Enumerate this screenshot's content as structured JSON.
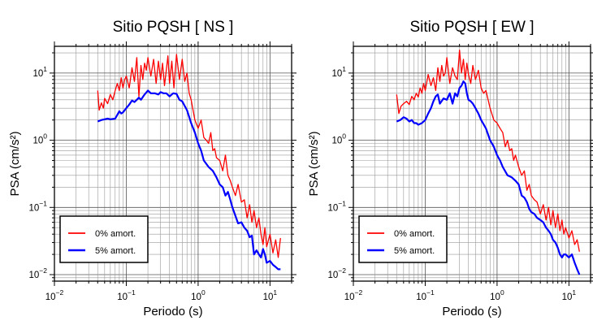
{
  "chart_data": [
    {
      "type": "line",
      "title": "Sitio PQSH [ NS ]",
      "xlabel": "Periodo (s)",
      "ylabel": "PSA (cm/s²)",
      "x_scale": "log",
      "y_scale": "log",
      "xlim": [
        0.01,
        20
      ],
      "ylim": [
        0.008,
        25
      ],
      "grid": true,
      "legend_position": "bottom-left",
      "x_ticks": [
        {
          "value": 0.01,
          "base": "10",
          "exp": "−2"
        },
        {
          "value": 0.1,
          "base": "10",
          "exp": "−1"
        },
        {
          "value": 1,
          "base": "10",
          "exp": "0"
        },
        {
          "value": 10,
          "base": "10",
          "exp": "1"
        }
      ],
      "y_ticks": [
        {
          "value": 0.01,
          "base": "10",
          "exp": "−2"
        },
        {
          "value": 0.1,
          "base": "10",
          "exp": "−1"
        },
        {
          "value": 1,
          "base": "10",
          "exp": "0"
        },
        {
          "value": 10,
          "base": "10",
          "exp": "1"
        }
      ],
      "series": [
        {
          "name": "0% amort.",
          "color": "#ff0000",
          "x": [
            0.04,
            0.042,
            0.045,
            0.048,
            0.05,
            0.055,
            0.06,
            0.065,
            0.07,
            0.075,
            0.08,
            0.085,
            0.09,
            0.095,
            0.1,
            0.11,
            0.12,
            0.13,
            0.14,
            0.15,
            0.16,
            0.17,
            0.18,
            0.19,
            0.2,
            0.22,
            0.24,
            0.26,
            0.28,
            0.3,
            0.32,
            0.34,
            0.36,
            0.38,
            0.4,
            0.43,
            0.46,
            0.5,
            0.55,
            0.6,
            0.65,
            0.7,
            0.75,
            0.8,
            0.9,
            1.0,
            1.1,
            1.2,
            1.3,
            1.4,
            1.5,
            1.6,
            1.7,
            1.8,
            2.0,
            2.2,
            2.4,
            2.6,
            2.8,
            3.0,
            3.3,
            3.6,
            4.0,
            4.4,
            4.8,
            5.2,
            5.6,
            6.0,
            6.5,
            7.0,
            7.5,
            8.0,
            8.5,
            9.0,
            10,
            11,
            12,
            13,
            14
          ],
          "values": [
            5.5,
            2.8,
            3.6,
            3.0,
            4.2,
            3.5,
            4.8,
            4.0,
            5.5,
            7.0,
            5.5,
            8.5,
            6.0,
            8.0,
            9.0,
            6.0,
            12.0,
            7.5,
            17.0,
            4.5,
            13.0,
            8.0,
            14.0,
            11.0,
            17.0,
            9.0,
            16.0,
            7.0,
            15.0,
            8.0,
            14.0,
            6.5,
            11.0,
            18.0,
            7.0,
            15.0,
            6.0,
            19.0,
            8.0,
            16.0,
            7.5,
            10.0,
            5.0,
            4.0,
            2.0,
            1.5,
            2.0,
            1.1,
            1.0,
            0.9,
            1.3,
            0.7,
            0.75,
            0.55,
            0.5,
            0.35,
            0.6,
            0.3,
            0.25,
            0.2,
            0.15,
            0.22,
            0.12,
            0.13,
            0.07,
            0.11,
            0.06,
            0.09,
            0.05,
            0.07,
            0.04,
            0.028,
            0.05,
            0.026,
            0.04,
            0.021,
            0.033,
            0.018,
            0.035
          ]
        },
        {
          "name": "5% amort.",
          "color": "#0000ff",
          "x": [
            0.04,
            0.045,
            0.05,
            0.055,
            0.06,
            0.07,
            0.08,
            0.085,
            0.09,
            0.1,
            0.11,
            0.12,
            0.13,
            0.14,
            0.15,
            0.16,
            0.18,
            0.2,
            0.22,
            0.25,
            0.28,
            0.3,
            0.33,
            0.36,
            0.4,
            0.45,
            0.5,
            0.55,
            0.6,
            0.7,
            0.8,
            0.9,
            1.0,
            1.1,
            1.2,
            1.4,
            1.6,
            1.8,
            2.0,
            2.2,
            2.4,
            2.6,
            2.8,
            3.0,
            3.3,
            3.6,
            4.0,
            4.4,
            4.8,
            5.2,
            5.6,
            6.0,
            6.5,
            7.0,
            7.5,
            8.0,
            8.5,
            9.0,
            10,
            11,
            12,
            13,
            14
          ],
          "values": [
            1.9,
            2.0,
            2.05,
            2.1,
            2.05,
            2.1,
            2.7,
            2.5,
            2.6,
            3.0,
            3.4,
            3.9,
            3.7,
            4.0,
            4.3,
            4.0,
            4.8,
            5.5,
            5.0,
            5.0,
            4.8,
            5.2,
            5.0,
            5.0,
            4.5,
            5.0,
            4.9,
            4.0,
            3.8,
            2.8,
            1.8,
            1.3,
            0.9,
            0.7,
            0.5,
            0.4,
            0.35,
            0.28,
            0.22,
            0.2,
            0.15,
            0.17,
            0.13,
            0.1,
            0.075,
            0.058,
            0.06,
            0.05,
            0.045,
            0.036,
            0.038,
            0.02,
            0.023,
            0.02,
            0.018,
            0.024,
            0.02,
            0.015,
            0.016,
            0.014,
            0.013,
            0.012,
            0.012
          ]
        }
      ]
    },
    {
      "type": "line",
      "title": "Sitio PQSH [ EW ]",
      "xlabel": "Periodo (s)",
      "ylabel": "PSA (cm/s²)",
      "x_scale": "log",
      "y_scale": "log",
      "xlim": [
        0.01,
        20
      ],
      "ylim": [
        0.008,
        25
      ],
      "grid": true,
      "legend_position": "bottom-left",
      "x_ticks": [
        {
          "value": 0.01,
          "base": "10",
          "exp": "−2"
        },
        {
          "value": 0.1,
          "base": "10",
          "exp": "−1"
        },
        {
          "value": 1,
          "base": "10",
          "exp": "0"
        },
        {
          "value": 10,
          "base": "10",
          "exp": "1"
        }
      ],
      "y_ticks": [
        {
          "value": 0.01,
          "base": "10",
          "exp": "−2"
        },
        {
          "value": 0.1,
          "base": "10",
          "exp": "−1"
        },
        {
          "value": 1,
          "base": "10",
          "exp": "0"
        },
        {
          "value": 10,
          "base": "10",
          "exp": "1"
        }
      ],
      "series": [
        {
          "name": "0% amort.",
          "color": "#ff0000",
          "x": [
            0.04,
            0.043,
            0.046,
            0.05,
            0.055,
            0.06,
            0.065,
            0.07,
            0.075,
            0.08,
            0.085,
            0.09,
            0.095,
            0.1,
            0.11,
            0.12,
            0.13,
            0.14,
            0.15,
            0.16,
            0.17,
            0.18,
            0.19,
            0.2,
            0.22,
            0.24,
            0.26,
            0.28,
            0.3,
            0.32,
            0.34,
            0.36,
            0.38,
            0.4,
            0.43,
            0.46,
            0.5,
            0.55,
            0.6,
            0.65,
            0.7,
            0.8,
            0.9,
            1.0,
            1.1,
            1.2,
            1.3,
            1.4,
            1.5,
            1.6,
            1.7,
            1.8,
            2.0,
            2.2,
            2.4,
            2.6,
            2.8,
            3.0,
            3.3,
            3.6,
            4.0,
            4.4,
            4.8,
            5.2,
            5.6,
            6.0,
            6.5,
            7.0,
            7.5,
            8.0,
            8.5,
            9.0,
            10,
            11,
            12,
            13,
            14
          ],
          "values": [
            4.8,
            2.5,
            3.2,
            3.5,
            3.8,
            3.4,
            4.5,
            4.0,
            5.0,
            4.4,
            6.0,
            5.0,
            7.0,
            5.5,
            9.5,
            6.5,
            8.5,
            5.5,
            12.0,
            7.5,
            13.0,
            9.0,
            10.0,
            17.0,
            7.0,
            12.0,
            9.0,
            8.0,
            22.0,
            10.0,
            16.0,
            8.0,
            14.0,
            9.5,
            7.0,
            13.0,
            8.0,
            11.0,
            6.0,
            5.0,
            5.5,
            3.0,
            2.0,
            1.8,
            1.5,
            1.3,
            0.8,
            1.0,
            0.7,
            0.75,
            0.5,
            0.6,
            0.4,
            0.3,
            0.35,
            0.18,
            0.22,
            0.15,
            0.13,
            0.12,
            0.08,
            0.11,
            0.065,
            0.1,
            0.055,
            0.09,
            0.05,
            0.08,
            0.045,
            0.065,
            0.04,
            0.05,
            0.035,
            0.045,
            0.028,
            0.033,
            0.022
          ]
        },
        {
          "name": "5% amort.",
          "color": "#0000ff",
          "x": [
            0.04,
            0.045,
            0.05,
            0.055,
            0.06,
            0.065,
            0.07,
            0.075,
            0.08,
            0.09,
            0.1,
            0.11,
            0.12,
            0.13,
            0.14,
            0.15,
            0.16,
            0.18,
            0.2,
            0.22,
            0.24,
            0.26,
            0.28,
            0.3,
            0.32,
            0.34,
            0.36,
            0.38,
            0.4,
            0.43,
            0.46,
            0.5,
            0.55,
            0.6,
            0.7,
            0.8,
            0.9,
            1.0,
            1.1,
            1.2,
            1.4,
            1.6,
            1.8,
            2.0,
            2.2,
            2.4,
            2.6,
            2.8,
            3.0,
            3.3,
            3.6,
            4.0,
            4.4,
            4.8,
            5.2,
            5.6,
            6.0,
            6.5,
            7.0,
            7.5,
            8.0,
            8.5,
            9.0,
            10,
            11,
            12,
            13,
            14
          ],
          "values": [
            1.9,
            2.0,
            2.2,
            2.1,
            1.9,
            2.0,
            1.8,
            1.8,
            1.7,
            1.8,
            2.0,
            2.5,
            3.0,
            3.8,
            4.5,
            4.8,
            3.5,
            4.2,
            4.0,
            5.0,
            3.5,
            5.0,
            4.5,
            6.0,
            6.5,
            7.5,
            7.0,
            5.0,
            4.0,
            3.8,
            3.5,
            3.0,
            2.5,
            2.0,
            1.5,
            1.0,
            0.8,
            0.6,
            0.5,
            0.4,
            0.3,
            0.28,
            0.25,
            0.22,
            0.15,
            0.14,
            0.12,
            0.095,
            0.085,
            0.08,
            0.07,
            0.065,
            0.06,
            0.05,
            0.045,
            0.04,
            0.033,
            0.03,
            0.025,
            0.02,
            0.018,
            0.02,
            0.02,
            0.018,
            0.02,
            0.015,
            0.012,
            0.01
          ]
        }
      ]
    }
  ]
}
